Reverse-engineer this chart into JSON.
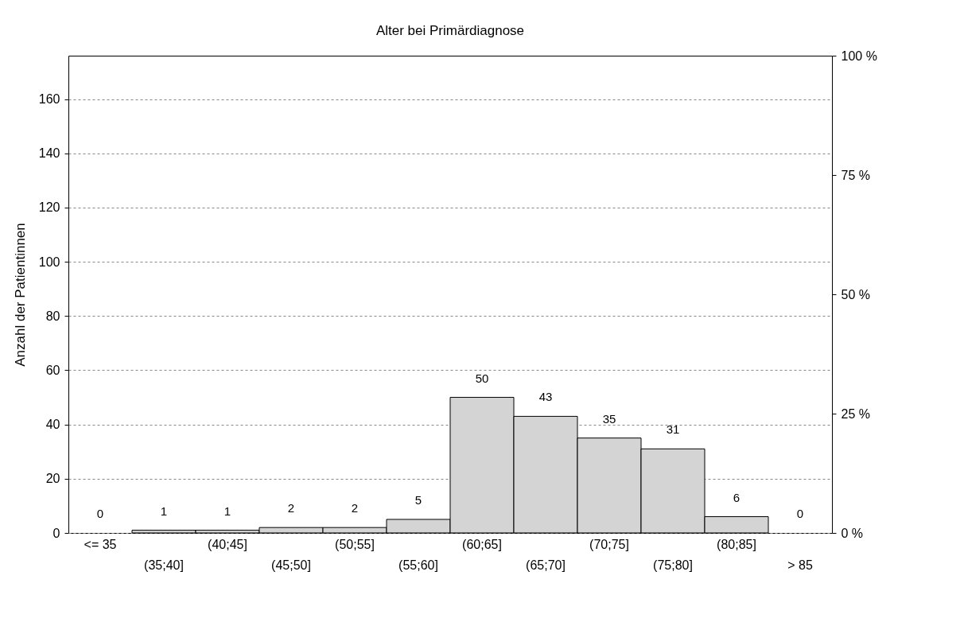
{
  "chart_data": {
    "type": "bar",
    "title": "Alter bei Primärdiagnose",
    "ylabel": "Anzahl der Patientinnen",
    "categories": [
      "<= 35",
      "(35;40]",
      "(40;45]",
      "(45;50]",
      "(50;55]",
      "(55;60]",
      "(60;65]",
      "(65;70]",
      "(70;75]",
      "(75;80]",
      "(80;85]",
      "> 85"
    ],
    "values": [
      0,
      1,
      1,
      2,
      2,
      5,
      50,
      43,
      35,
      31,
      6,
      0
    ],
    "color": "#d4d4d4",
    "data_labels": true,
    "grid": "y",
    "ylim": [
      0,
      176
    ],
    "yticks": [
      0,
      20,
      40,
      60,
      80,
      100,
      120,
      140,
      160
    ],
    "y2lim": [
      0,
      100
    ],
    "y2ticks": [
      {
        "value": 0,
        "label": "0 %"
      },
      {
        "value": 25,
        "label": "25 %"
      },
      {
        "value": 50,
        "label": "50 %"
      },
      {
        "value": 75,
        "label": "75 %"
      },
      {
        "value": 100,
        "label": "100 %"
      }
    ]
  }
}
